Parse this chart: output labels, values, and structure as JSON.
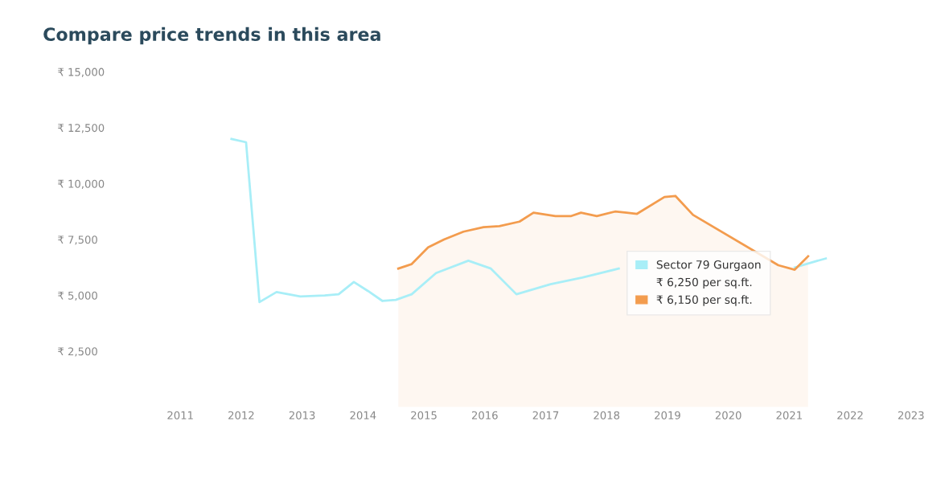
{
  "chart_data": {
    "type": "line",
    "title": "Compare price trends in this area",
    "annotations": [
      "₹ 6,250 per sq.ft.",
      "₹ 6,150 per sq.ft."
    ],
    "series": [
      {
        "name": "Sector 79 Gurgaon",
        "color": "#a8eef7",
        "x": [
          2011.84,
          2012.08,
          2012.3,
          2012.58,
          2012.97,
          2013.37,
          2013.6,
          2013.85,
          2014.08,
          2014.32,
          2014.54,
          2014.8,
          2015.2,
          2015.73,
          2016.1,
          2016.52,
          2017.08,
          2017.6,
          2018.2,
          2019.0,
          2019.8,
          2020.5,
          2021.09,
          2021.4,
          2021.6
        ],
        "values": [
          12000,
          11850,
          4700,
          5150,
          4950,
          5000,
          5050,
          5600,
          5200,
          4750,
          4800,
          5050,
          6000,
          6550,
          6200,
          5050,
          5500,
          5800,
          6200,
          null,
          null,
          null,
          6250,
          6500,
          6650
        ]
      },
      {
        "color": "#f39c4e",
        "type": "area",
        "x": [
          2014.58,
          2014.8,
          2015.07,
          2015.33,
          2015.65,
          2015.98,
          2016.24,
          2016.57,
          2016.8,
          2017.16,
          2017.42,
          2017.58,
          2017.84,
          2018.14,
          2018.33,
          2018.5,
          2018.95,
          2019.13,
          2019.42,
          2020.82,
          2021.09,
          2021.31
        ],
        "values": [
          6200,
          6400,
          7150,
          7500,
          7850,
          8050,
          8100,
          8300,
          8700,
          8550,
          8550,
          8700,
          8550,
          8750,
          8700,
          8650,
          9400,
          9450,
          8600,
          6350,
          6150,
          6750
        ]
      }
    ],
    "xlim": [
      2011,
      2023
    ],
    "xticks": [
      2011,
      2012,
      2013,
      2014,
      2015,
      2016,
      2017,
      2018,
      2019,
      2020,
      2021,
      2022,
      2023
    ],
    "ylim": [
      0,
      15000
    ],
    "yticks": [
      {
        "value": 2500,
        "label": "₹ 2,500"
      },
      {
        "value": 5000,
        "label": "₹ 5,000"
      },
      {
        "value": 7500,
        "label": "₹ 7,500"
      },
      {
        "value": 10000,
        "label": "₹ 10,000"
      },
      {
        "value": 12500,
        "label": "₹ 12,500"
      },
      {
        "value": 15000,
        "label": "₹ 15,000"
      }
    ],
    "grid": false,
    "legend": "center right"
  }
}
